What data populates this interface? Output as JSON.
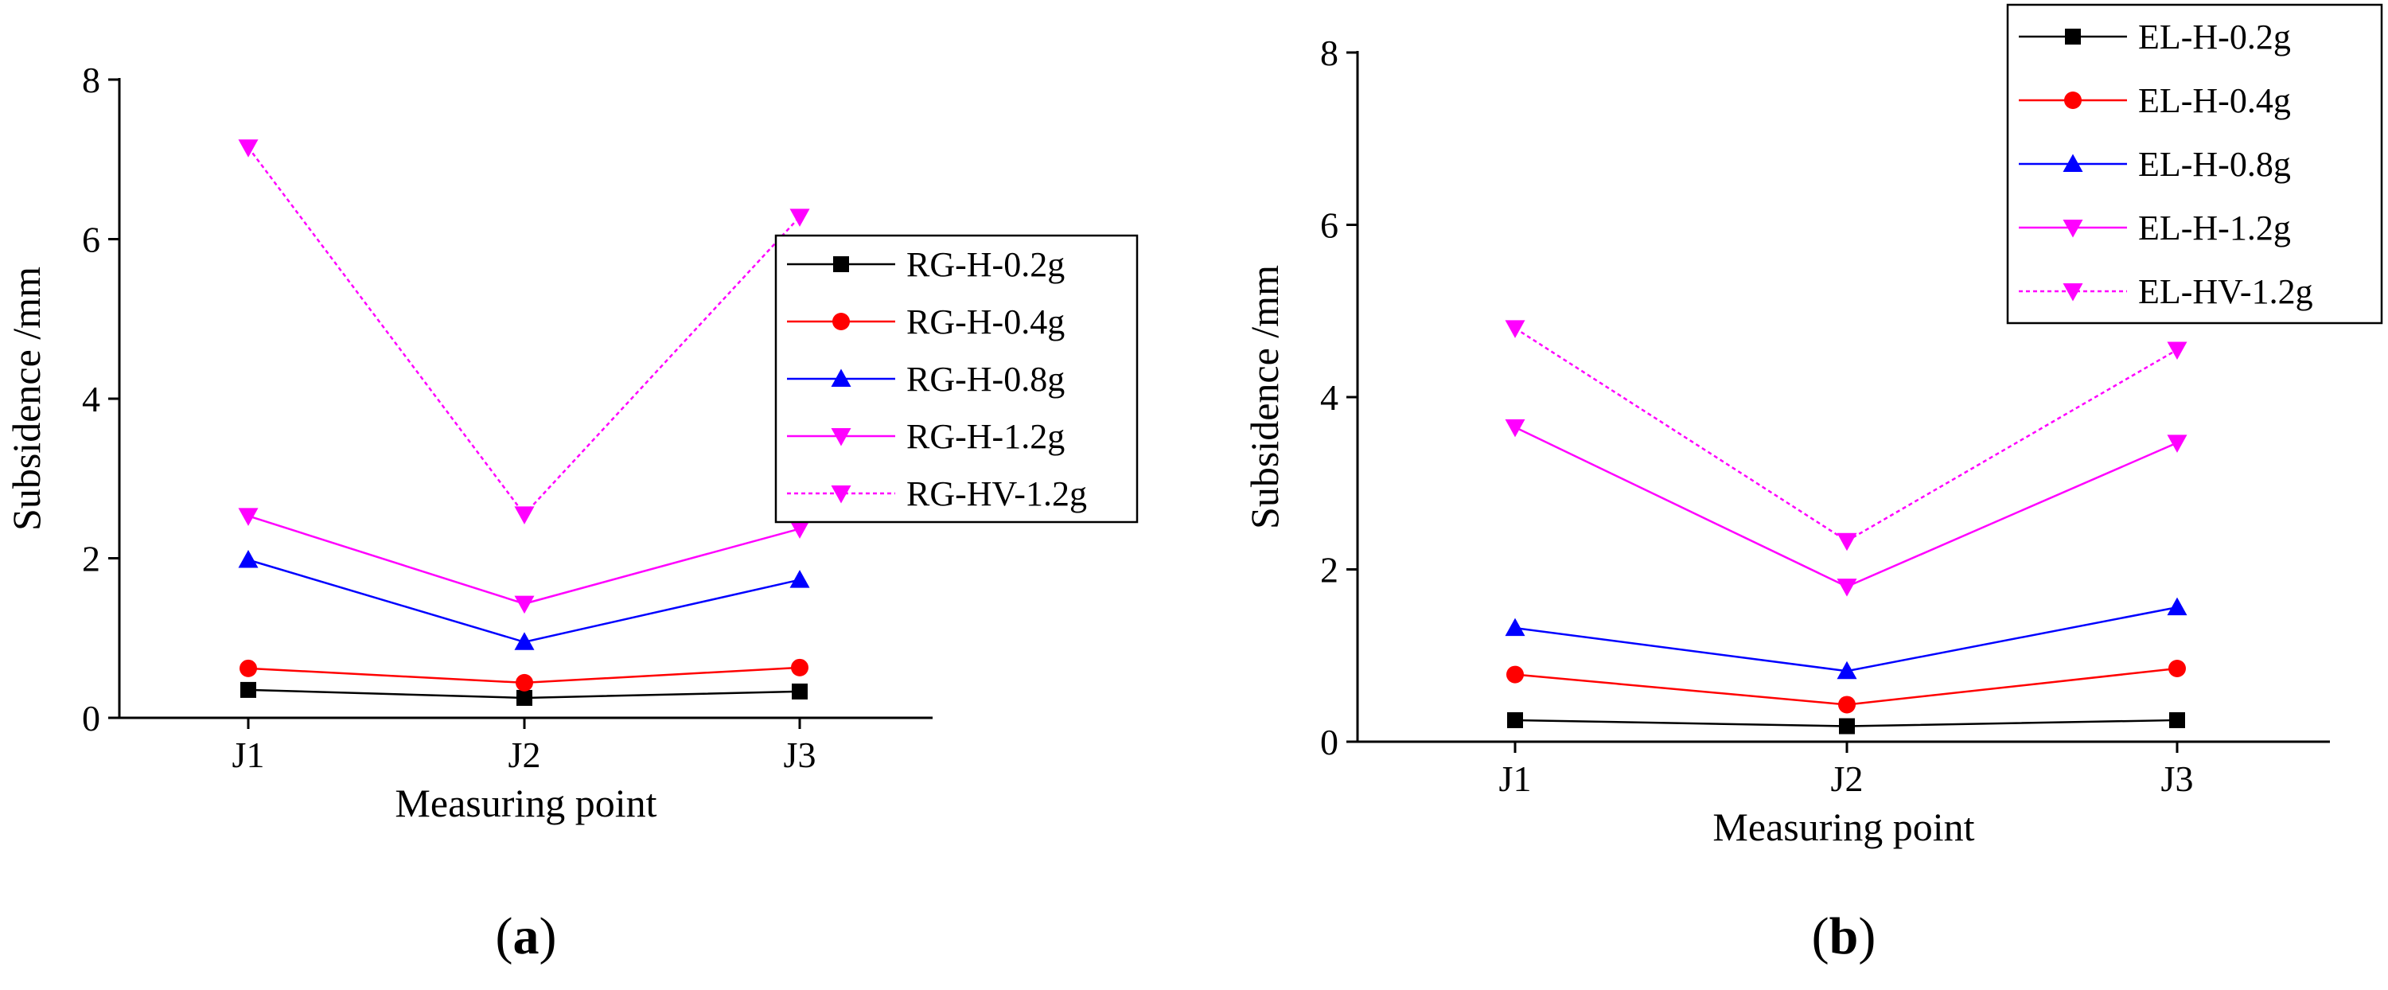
{
  "chart_data": [
    {
      "type": "line",
      "panel_label": "a",
      "categories": [
        "J1",
        "J2",
        "J3"
      ],
      "xlabel": "Measuring point",
      "ylabel": "Subsidence /mm",
      "ylim": [
        0,
        8
      ],
      "yticks": [
        "0",
        "2",
        "4",
        "6",
        "8"
      ],
      "legend_position": "right-middle",
      "series": [
        {
          "name": "RG-H-0.2g",
          "values": [
            0.35,
            0.25,
            0.33
          ],
          "color": "#000000",
          "marker": "square",
          "dashed": false
        },
        {
          "name": "RG-H-0.4g",
          "values": [
            0.62,
            0.44,
            0.63
          ],
          "color": "#ff0000",
          "marker": "circle",
          "dashed": false
        },
        {
          "name": "RG-H-0.8g",
          "values": [
            1.98,
            0.95,
            1.73
          ],
          "color": "#0000ff",
          "marker": "triangle-up",
          "dashed": false
        },
        {
          "name": "RG-H-1.2g",
          "values": [
            2.53,
            1.43,
            2.37
          ],
          "color": "#ff00ff",
          "marker": "triangle-down",
          "dashed": false
        },
        {
          "name": "RG-HV-1.2g",
          "values": [
            7.15,
            2.55,
            6.28
          ],
          "color": "#ff00ff",
          "marker": "triangle-down",
          "dashed": true
        }
      ]
    },
    {
      "type": "line",
      "panel_label": "b",
      "categories": [
        "J1",
        "J2",
        "J3"
      ],
      "xlabel": "Measuring point",
      "ylabel": "Subsidence /mm",
      "ylim": [
        0,
        8
      ],
      "yticks": [
        "0",
        "2",
        "4",
        "6",
        "8"
      ],
      "legend_position": "top-right",
      "series": [
        {
          "name": "EL-H-0.2g",
          "values": [
            0.25,
            0.18,
            0.25
          ],
          "color": "#000000",
          "marker": "square",
          "dashed": false
        },
        {
          "name": "EL-H-0.4g",
          "values": [
            0.78,
            0.43,
            0.85
          ],
          "color": "#ff0000",
          "marker": "circle",
          "dashed": false
        },
        {
          "name": "EL-H-0.8g",
          "values": [
            1.32,
            0.82,
            1.56
          ],
          "color": "#0000ff",
          "marker": "triangle-up",
          "dashed": false
        },
        {
          "name": "EL-H-1.2g",
          "values": [
            3.65,
            1.8,
            3.47
          ],
          "color": "#ff00ff",
          "marker": "triangle-down",
          "dashed": false
        },
        {
          "name": "EL-HV-1.2g",
          "values": [
            4.8,
            2.33,
            4.55
          ],
          "color": "#ff00ff",
          "marker": "triangle-down",
          "dashed": true
        }
      ]
    }
  ]
}
